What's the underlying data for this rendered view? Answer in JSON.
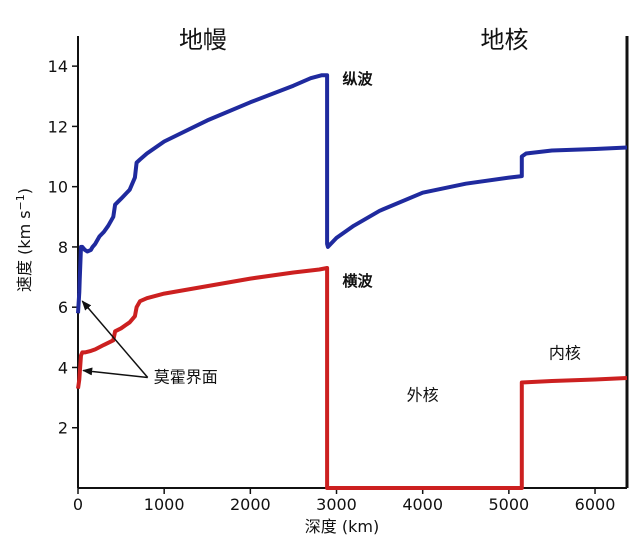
{
  "chart_data": {
    "type": "line",
    "xlabel": "深度 (km)",
    "ylabel": "速度 (km s",
    "ylabel_exp": "−1",
    "ylabel_close": ")",
    "xlim": [
      0,
      6371
    ],
    "ylim": [
      0,
      15
    ],
    "x_ticks": [
      0,
      1000,
      2000,
      3000,
      4000,
      5000,
      6000
    ],
    "y_ticks": [
      2,
      4,
      6,
      8,
      10,
      12,
      14
    ],
    "grid": false,
    "regions": [
      {
        "label": "地幔",
        "x": 1450
      },
      {
        "label": "地核",
        "x": 4950
      }
    ],
    "annotations": [
      {
        "text": "纵波",
        "x": 3070,
        "y": 13.4
      },
      {
        "text": "横波",
        "x": 3070,
        "y": 6.7
      },
      {
        "text": "莫霍界面",
        "x": 1250,
        "y": 3.5
      },
      {
        "text": "外核",
        "x": 4000,
        "y": 2.9
      },
      {
        "text": "内核",
        "x": 5650,
        "y": 4.3
      }
    ],
    "series": [
      {
        "name": "纵波",
        "color": "#1f2a9e",
        "x": [
          0,
          15,
          20,
          35,
          50,
          80,
          110,
          150,
          170,
          200,
          250,
          300,
          350,
          410,
          430,
          500,
          600,
          660,
          680,
          720,
          800,
          1000,
          1500,
          2000,
          2500,
          2700,
          2830,
          2880,
          2891,
          2891,
          2900,
          3000,
          3200,
          3500,
          4000,
          4500,
          5000,
          5150,
          5150,
          5200,
          5500,
          6000,
          6371
        ],
        "y": [
          5.8,
          6.5,
          6.9,
          8.0,
          8.0,
          7.9,
          7.85,
          7.9,
          8.0,
          8.1,
          8.35,
          8.5,
          8.7,
          9.0,
          9.4,
          9.6,
          9.9,
          10.3,
          10.8,
          10.9,
          11.1,
          11.5,
          12.2,
          12.8,
          13.35,
          13.6,
          13.7,
          13.7,
          13.7,
          8.1,
          8.0,
          8.3,
          8.7,
          9.2,
          9.8,
          10.1,
          10.3,
          10.35,
          11.0,
          11.1,
          11.2,
          11.25,
          11.3
        ]
      },
      {
        "name": "横波",
        "color": "#cc2020",
        "x": [
          0,
          15,
          20,
          35,
          50,
          80,
          150,
          200,
          300,
          410,
          430,
          500,
          600,
          660,
          680,
          720,
          800,
          1000,
          1500,
          2000,
          2500,
          2800,
          2891,
          2891,
          5150,
          5150,
          5500,
          6000,
          6371
        ],
        "y": [
          3.3,
          3.6,
          3.8,
          4.4,
          4.5,
          4.5,
          4.55,
          4.6,
          4.75,
          4.9,
          5.2,
          5.3,
          5.5,
          5.7,
          6.0,
          6.2,
          6.3,
          6.45,
          6.7,
          6.95,
          7.15,
          7.25,
          7.3,
          0.0,
          0.0,
          3.5,
          3.55,
          3.6,
          3.65
        ]
      }
    ]
  }
}
